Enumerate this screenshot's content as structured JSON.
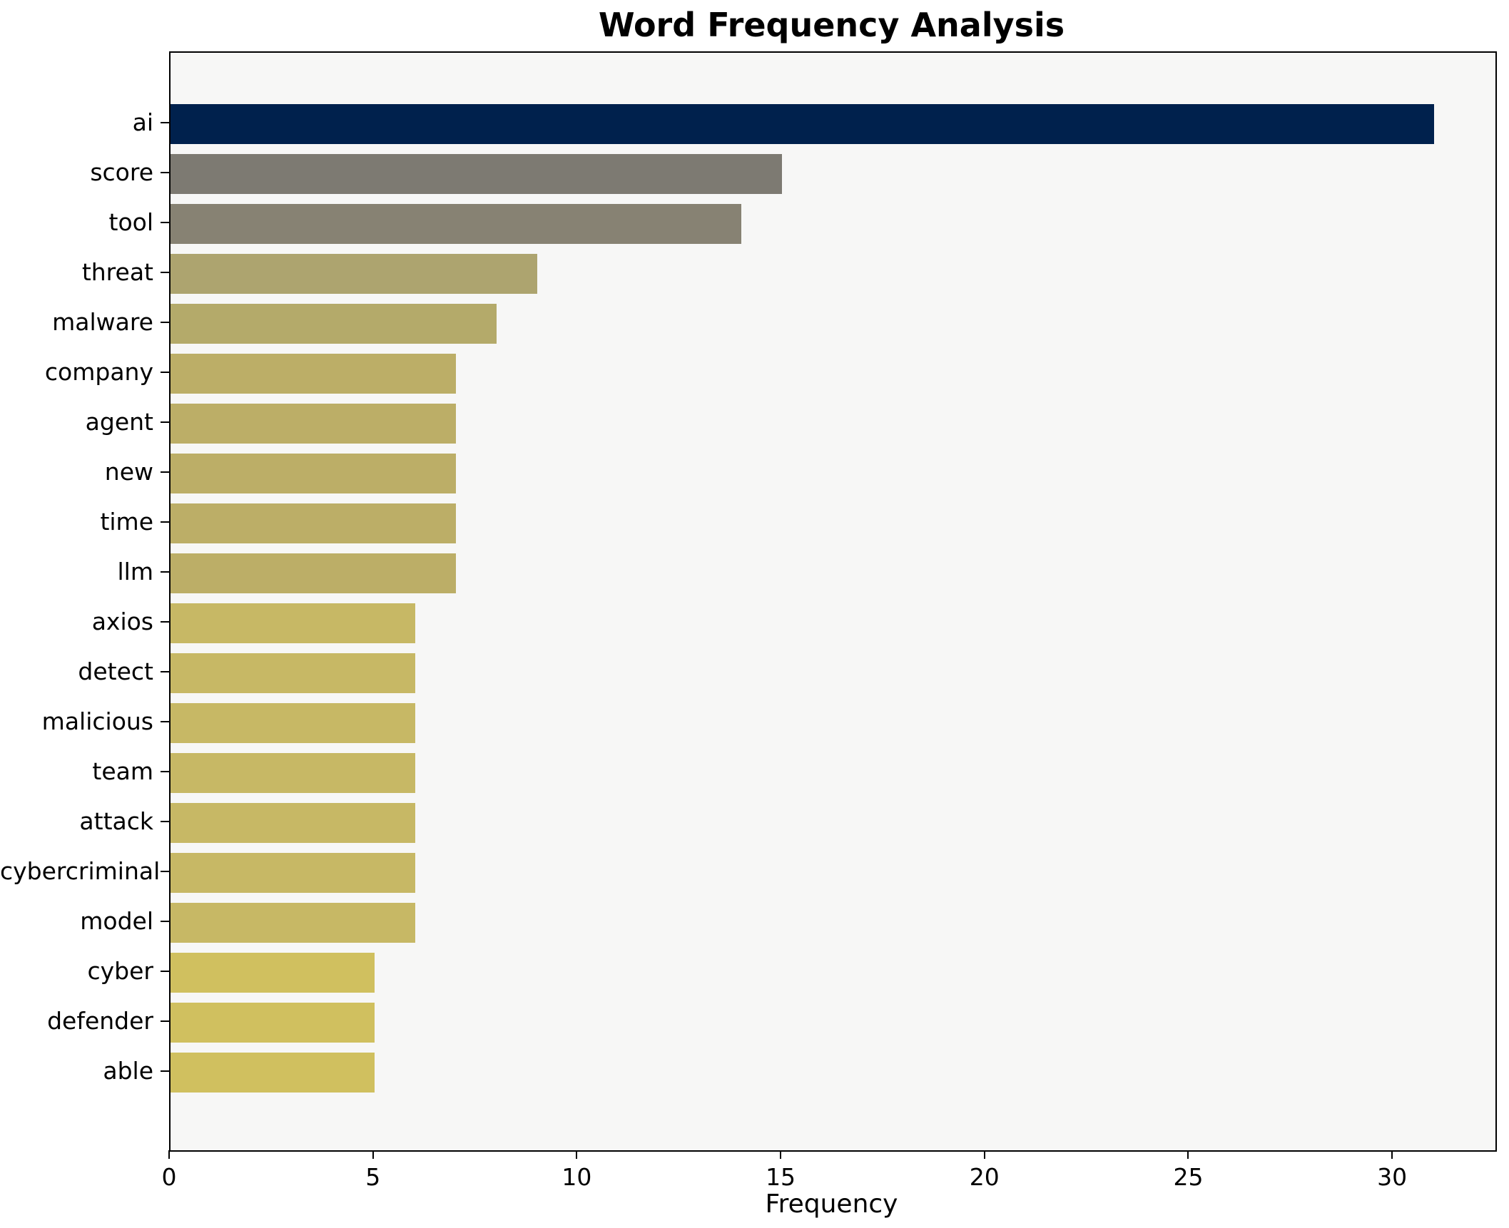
{
  "chart_data": {
    "type": "bar",
    "orientation": "horizontal",
    "title": "Word Frequency Analysis",
    "xlabel": "Frequency",
    "ylabel": "",
    "categories": [
      "ai",
      "score",
      "tool",
      "threat",
      "malware",
      "company",
      "agent",
      "new",
      "time",
      "llm",
      "axios",
      "detect",
      "malicious",
      "team",
      "attack",
      "cybercriminal",
      "model",
      "cyber",
      "defender",
      "able"
    ],
    "values": [
      31,
      15,
      14,
      9,
      8,
      7,
      7,
      7,
      7,
      7,
      6,
      6,
      6,
      6,
      6,
      6,
      6,
      5,
      5,
      5
    ],
    "bar_colors": [
      "#00214d",
      "#7d7a72",
      "#878273",
      "#ada46f",
      "#b4aa6a",
      "#bcae67",
      "#bcae67",
      "#bcae67",
      "#bcae67",
      "#bcae67",
      "#c7b865",
      "#c7b865",
      "#c7b865",
      "#c7b865",
      "#c7b865",
      "#c7b865",
      "#c7b865",
      "#d0c05f",
      "#d0c05f",
      "#d0c05f"
    ],
    "xlim": [
      0,
      32.5
    ],
    "x_ticks": [
      0,
      5,
      10,
      15,
      20,
      25,
      30
    ],
    "grid": false,
    "legend": null,
    "plot_background": "#f7f7f6",
    "figure_background": "#ffffff",
    "spine_color": "#000000"
  }
}
